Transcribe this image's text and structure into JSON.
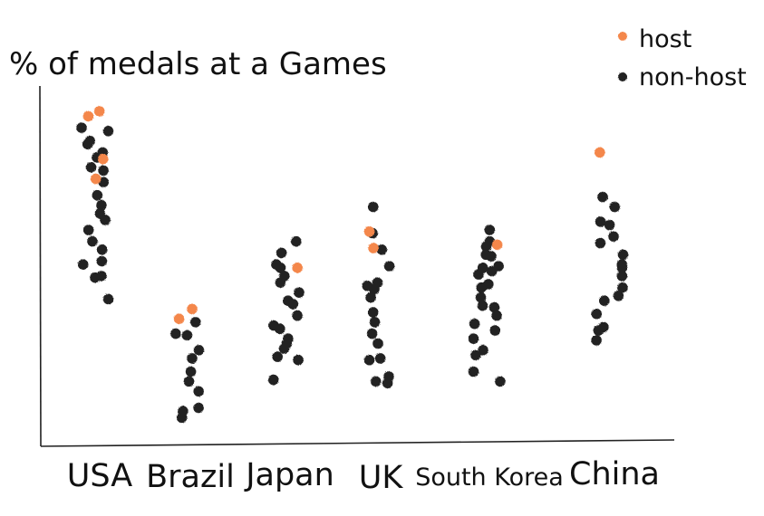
{
  "chart_data": {
    "type": "scatter",
    "title": "",
    "ylabel": "% of medals at a Games",
    "xlabel": "",
    "ylim": [
      0,
      100
    ],
    "grid": false,
    "legend_position": "top-right",
    "categories": [
      "USA",
      "Brazil",
      "Japan",
      "UK",
      "South Korea",
      "China"
    ],
    "series": [
      {
        "name": "host",
        "color": "#f4874b",
        "points": [
          {
            "category": "USA",
            "y": 97
          },
          {
            "category": "USA",
            "y": 95.5
          },
          {
            "category": "USA",
            "y": 82.5
          },
          {
            "category": "USA",
            "y": 76.5
          },
          {
            "category": "Brazil",
            "y": 37
          },
          {
            "category": "Brazil",
            "y": 34
          },
          {
            "category": "Japan",
            "y": 49.5
          },
          {
            "category": "UK",
            "y": 60.5
          },
          {
            "category": "UK",
            "y": 55.5
          },
          {
            "category": "South Korea",
            "y": 56.5
          },
          {
            "category": "China",
            "y": 84.5
          }
        ]
      },
      {
        "name": "non-host",
        "color": "#222222",
        "points": [
          {
            "category": "USA",
            "y": 92
          },
          {
            "category": "USA",
            "y": 91
          },
          {
            "category": "USA",
            "y": 88
          },
          {
            "category": "USA",
            "y": 87
          },
          {
            "category": "USA",
            "y": 84.5
          },
          {
            "category": "USA",
            "y": 83
          },
          {
            "category": "USA",
            "y": 80
          },
          {
            "category": "USA",
            "y": 79
          },
          {
            "category": "USA",
            "y": 75.5
          },
          {
            "category": "USA",
            "y": 71.5
          },
          {
            "category": "USA",
            "y": 68.5
          },
          {
            "category": "USA",
            "y": 66
          },
          {
            "category": "USA",
            "y": 64
          },
          {
            "category": "USA",
            "y": 61
          },
          {
            "category": "USA",
            "y": 57.5
          },
          {
            "category": "USA",
            "y": 55
          },
          {
            "category": "USA",
            "y": 51.5
          },
          {
            "category": "USA",
            "y": 50.5
          },
          {
            "category": "USA",
            "y": 47
          },
          {
            "category": "USA",
            "y": 46.5
          },
          {
            "category": "USA",
            "y": 40
          },
          {
            "category": "Brazil",
            "y": 33
          },
          {
            "category": "Brazil",
            "y": 29.5
          },
          {
            "category": "Brazil",
            "y": 29
          },
          {
            "category": "Brazil",
            "y": 24.5
          },
          {
            "category": "Brazil",
            "y": 22
          },
          {
            "category": "Brazil",
            "y": 18
          },
          {
            "category": "Brazil",
            "y": 15
          },
          {
            "category": "Brazil",
            "y": 12
          },
          {
            "category": "Brazil",
            "y": 7
          },
          {
            "category": "Brazil",
            "y": 6
          },
          {
            "category": "Brazil",
            "y": 4
          },
          {
            "category": "Japan",
            "y": 57.5
          },
          {
            "category": "Japan",
            "y": 54
          },
          {
            "category": "Japan",
            "y": 50.5
          },
          {
            "category": "Japan",
            "y": 49.5
          },
          {
            "category": "Japan",
            "y": 47
          },
          {
            "category": "Japan",
            "y": 45
          },
          {
            "category": "Japan",
            "y": 42
          },
          {
            "category": "Japan",
            "y": 39.5
          },
          {
            "category": "Japan",
            "y": 38.5
          },
          {
            "category": "Japan",
            "y": 35
          },
          {
            "category": "Japan",
            "y": 32
          },
          {
            "category": "Japan",
            "y": 31
          },
          {
            "category": "Japan",
            "y": 28
          },
          {
            "category": "Japan",
            "y": 26.5
          },
          {
            "category": "Japan",
            "y": 25
          },
          {
            "category": "Japan",
            "y": 22.5
          },
          {
            "category": "Japan",
            "y": 21.5
          },
          {
            "category": "Japan",
            "y": 15.5
          },
          {
            "category": "UK",
            "y": 68
          },
          {
            "category": "UK",
            "y": 60
          },
          {
            "category": "UK",
            "y": 55
          },
          {
            "category": "UK",
            "y": 50
          },
          {
            "category": "UK",
            "y": 45
          },
          {
            "category": "UK",
            "y": 44
          },
          {
            "category": "UK",
            "y": 43
          },
          {
            "category": "UK",
            "y": 40.5
          },
          {
            "category": "UK",
            "y": 36
          },
          {
            "category": "UK",
            "y": 33
          },
          {
            "category": "UK",
            "y": 29.5
          },
          {
            "category": "UK",
            "y": 26.5
          },
          {
            "category": "UK",
            "y": 22
          },
          {
            "category": "UK",
            "y": 21.5
          },
          {
            "category": "UK",
            "y": 16.5
          },
          {
            "category": "UK",
            "y": 15
          },
          {
            "category": "UK",
            "y": 14.5
          },
          {
            "category": "South Korea",
            "y": 61
          },
          {
            "category": "South Korea",
            "y": 57.5
          },
          {
            "category": "South Korea",
            "y": 56
          },
          {
            "category": "South Korea",
            "y": 53.5
          },
          {
            "category": "South Korea",
            "y": 53
          },
          {
            "category": "South Korea",
            "y": 50
          },
          {
            "category": "South Korea",
            "y": 49.5
          },
          {
            "category": "South Korea",
            "y": 48.5
          },
          {
            "category": "South Korea",
            "y": 47.5
          },
          {
            "category": "South Korea",
            "y": 44.5
          },
          {
            "category": "South Korea",
            "y": 43.5
          },
          {
            "category": "South Korea",
            "y": 40.5
          },
          {
            "category": "South Korea",
            "y": 38
          },
          {
            "category": "South Korea",
            "y": 37.5
          },
          {
            "category": "South Korea",
            "y": 35
          },
          {
            "category": "South Korea",
            "y": 32.5
          },
          {
            "category": "South Korea",
            "y": 30.5
          },
          {
            "category": "South Korea",
            "y": 28
          },
          {
            "category": "South Korea",
            "y": 24.5
          },
          {
            "category": "South Korea",
            "y": 23
          },
          {
            "category": "South Korea",
            "y": 18
          },
          {
            "category": "South Korea",
            "y": 15
          },
          {
            "category": "China",
            "y": 71
          },
          {
            "category": "China",
            "y": 68
          },
          {
            "category": "China",
            "y": 63.5
          },
          {
            "category": "China",
            "y": 62.5
          },
          {
            "category": "China",
            "y": 59
          },
          {
            "category": "China",
            "y": 57
          },
          {
            "category": "China",
            "y": 53.5
          },
          {
            "category": "China",
            "y": 50.5
          },
          {
            "category": "China",
            "y": 49.5
          },
          {
            "category": "China",
            "y": 47
          },
          {
            "category": "China",
            "y": 43.5
          },
          {
            "category": "China",
            "y": 41
          },
          {
            "category": "China",
            "y": 39.5
          },
          {
            "category": "China",
            "y": 35.5
          },
          {
            "category": "China",
            "y": 31.5
          },
          {
            "category": "China",
            "y": 30.5
          },
          {
            "category": "China",
            "y": 27.5
          }
        ]
      }
    ]
  }
}
